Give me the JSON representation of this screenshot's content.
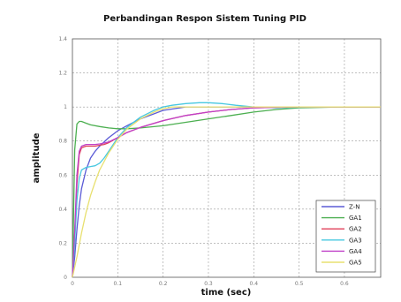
{
  "chart_data": {
    "type": "line",
    "title": "Perbandingan Respon Sistem Tuning PID",
    "xlabel": "time (sec)",
    "ylabel": "amplitude",
    "xlim": [
      0,
      0.68
    ],
    "ylim": [
      0,
      1.4
    ],
    "x_ticks": [
      0,
      0.1,
      0.2,
      0.3,
      0.4,
      0.5,
      0.6
    ],
    "x_tick_labels": [
      "0",
      "0.1",
      "0.2",
      "0.3",
      "0.4",
      "0.5",
      "0.6"
    ],
    "y_ticks": [
      0,
      0.2,
      0.4,
      0.6,
      0.8,
      1,
      1.2,
      1.4
    ],
    "y_tick_labels": [
      "0",
      "0.2",
      "0.4",
      "0.6",
      "0.8",
      "1",
      "1.2",
      "1.4"
    ],
    "grid": true,
    "legend_position": "bottom-right",
    "series": [
      {
        "name": "Z-N",
        "color": "#5b5bd6",
        "x": [
          0,
          0.005,
          0.01,
          0.015,
          0.02,
          0.03,
          0.04,
          0.05,
          0.06,
          0.08,
          0.1,
          0.12,
          0.15,
          0.18,
          0.2,
          0.25,
          0.3,
          0.35,
          0.4,
          0.5,
          0.6,
          0.68
        ],
        "y": [
          0,
          0.12,
          0.28,
          0.42,
          0.52,
          0.63,
          0.7,
          0.74,
          0.77,
          0.82,
          0.86,
          0.89,
          0.93,
          0.96,
          0.98,
          1.0,
          1.0,
          1.0,
          1.0,
          1.0,
          1.0,
          1.0
        ]
      },
      {
        "name": "GA1",
        "color": "#4caf50",
        "x": [
          0,
          0.005,
          0.01,
          0.015,
          0.02,
          0.03,
          0.04,
          0.06,
          0.08,
          0.1,
          0.12,
          0.15,
          0.2,
          0.25,
          0.3,
          0.35,
          0.4,
          0.45,
          0.5,
          0.6,
          0.68
        ],
        "y": [
          0,
          0.75,
          0.9,
          0.915,
          0.915,
          0.905,
          0.895,
          0.885,
          0.877,
          0.872,
          0.872,
          0.877,
          0.89,
          0.91,
          0.93,
          0.95,
          0.97,
          0.985,
          0.995,
          1.0,
          1.0
        ]
      },
      {
        "name": "GA2",
        "color": "#e0405a",
        "x": [
          0,
          0.005,
          0.01,
          0.015,
          0.02,
          0.03,
          0.04,
          0.05,
          0.06,
          0.07,
          0.08,
          0.1,
          0.12,
          0.15,
          0.2,
          0.25,
          0.3,
          0.35,
          0.4,
          0.5,
          0.6,
          0.68
        ],
        "y": [
          0,
          0.25,
          0.55,
          0.72,
          0.76,
          0.77,
          0.77,
          0.77,
          0.775,
          0.78,
          0.79,
          0.82,
          0.85,
          0.88,
          0.92,
          0.95,
          0.97,
          0.985,
          0.995,
          1.0,
          1.0,
          1.0
        ]
      },
      {
        "name": "GA3",
        "color": "#48c8e0",
        "x": [
          0,
          0.005,
          0.01,
          0.015,
          0.02,
          0.03,
          0.04,
          0.05,
          0.06,
          0.07,
          0.08,
          0.1,
          0.12,
          0.15,
          0.18,
          0.2,
          0.22,
          0.25,
          0.28,
          0.3,
          0.33,
          0.36,
          0.4,
          0.45,
          0.5,
          0.6,
          0.68
        ],
        "y": [
          0,
          0.2,
          0.45,
          0.58,
          0.63,
          0.645,
          0.65,
          0.655,
          0.67,
          0.7,
          0.74,
          0.82,
          0.88,
          0.94,
          0.98,
          1.0,
          1.01,
          1.02,
          1.025,
          1.025,
          1.02,
          1.01,
          1.0,
          0.995,
          0.998,
          1.0,
          1.0
        ]
      },
      {
        "name": "GA4",
        "color": "#c040c8",
        "x": [
          0,
          0.005,
          0.01,
          0.015,
          0.02,
          0.03,
          0.04,
          0.05,
          0.06,
          0.07,
          0.08,
          0.1,
          0.12,
          0.15,
          0.2,
          0.25,
          0.3,
          0.35,
          0.4,
          0.5,
          0.6,
          0.68
        ],
        "y": [
          0,
          0.28,
          0.6,
          0.74,
          0.77,
          0.78,
          0.78,
          0.78,
          0.783,
          0.788,
          0.795,
          0.82,
          0.85,
          0.88,
          0.92,
          0.95,
          0.97,
          0.985,
          0.995,
          1.0,
          1.0,
          1.0
        ]
      },
      {
        "name": "GA5",
        "color": "#e8e070",
        "x": [
          0,
          0.01,
          0.02,
          0.03,
          0.04,
          0.05,
          0.06,
          0.08,
          0.1,
          0.12,
          0.15,
          0.18,
          0.2,
          0.22,
          0.25,
          0.3,
          0.35,
          0.4,
          0.5,
          0.6,
          0.68
        ],
        "y": [
          0,
          0.12,
          0.26,
          0.38,
          0.48,
          0.56,
          0.63,
          0.73,
          0.81,
          0.87,
          0.93,
          0.97,
          0.99,
          1.0,
          1.0,
          1.0,
          1.0,
          1.0,
          1.0,
          1.0,
          1.0
        ]
      }
    ]
  }
}
